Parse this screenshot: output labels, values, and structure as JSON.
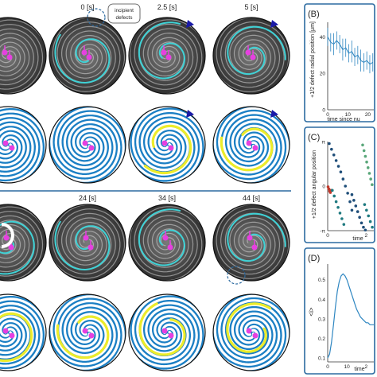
{
  "figure": {
    "time_labels_top": [
      "0 [s]",
      "2.5 [s]",
      "5 [s]"
    ],
    "time_labels_bottom": [
      "24 [s]",
      "34 [s]",
      "44 [s]"
    ],
    "callout": [
      "incipient",
      "defects"
    ],
    "colors": {
      "disk_blue": "#1b7fc4",
      "channel_white": "#ffffff",
      "yellow": "#ecec2a",
      "cyan": "#3fd2d6",
      "magenta": "#e640e0",
      "navy": "#1a1aa8",
      "divider": "#2b6aa0",
      "red": "#c0392b",
      "teal": "#1f7a80",
      "green": "#5aa77a"
    }
  },
  "panel_B": {
    "label": "(B)",
    "ylabel": "+1/2 defect radial position [μm]",
    "xlabel": "time since nu",
    "ytick_labels": [
      "40",
      "20",
      "0"
    ],
    "xtick_labels": [
      "0",
      "10",
      "20"
    ]
  },
  "panel_C": {
    "label": "(C)",
    "ylabel": "+1/2 defect angular position",
    "xlabel": "time",
    "ytick_labels": [
      "π",
      "0",
      "-π"
    ],
    "xtick_labels": [
      "0",
      "2"
    ]
  },
  "panel_D": {
    "label": "(D)",
    "ylabel": "<i>",
    "xlabel": "time",
    "ytick_labels": [
      "0.5",
      "0.4",
      "0.3",
      "0.2",
      "0.1"
    ],
    "xtick_labels": [
      "0",
      "10",
      "2"
    ]
  },
  "chart_data": [
    {
      "type": "line",
      "panel": "B",
      "x": [
        0,
        1.5,
        3,
        4.5,
        6,
        7.5,
        9,
        10.5,
        12,
        13.5,
        15,
        16.5,
        18,
        19.5,
        21,
        22.5
      ],
      "values": [
        40,
        37,
        36,
        38,
        36,
        33,
        34,
        31,
        32,
        29,
        30,
        27,
        26,
        27,
        25,
        26
      ],
      "error": [
        5,
        5,
        6,
        5,
        5,
        6,
        5,
        5,
        6,
        5,
        5,
        6,
        5,
        5,
        5,
        5
      ],
      "xlim": [
        0,
        23
      ],
      "ylim": [
        0,
        48
      ]
    },
    {
      "type": "scatter",
      "panel": "C",
      "xlim": [
        0,
        24
      ],
      "ylim": [
        -3.1416,
        3.1416
      ],
      "series": [
        {
          "color": "#c0392b",
          "x": [
            0.2,
            0.6,
            1.0,
            1.4,
            1.8
          ],
          "values": [
            -0.05,
            -0.2,
            -0.35,
            -0.45,
            -0.3
          ]
        },
        {
          "color": "#1f4e79",
          "x": [
            0.8,
            2,
            3.2,
            4.4,
            5.6,
            6.8,
            8,
            9.2,
            10.4,
            11.6,
            12.6
          ],
          "values": [
            3.0,
            2.6,
            2.2,
            1.8,
            1.4,
            1.0,
            0.5,
            0.0,
            -0.5,
            -1.1,
            -1.7
          ]
        },
        {
          "color": "#1f7a80",
          "x": [
            2.4,
            3.4,
            4.4,
            5.4,
            6.4,
            7.4,
            8.4
          ],
          "values": [
            -0.3,
            -0.7,
            -1.1,
            -1.5,
            -1.9,
            -2.3,
            -2.7
          ]
        },
        {
          "color": "#1f4e79",
          "x": [
            12.6,
            13.6,
            14.6,
            15.6,
            16.6,
            17.6,
            18.6,
            19.6
          ],
          "values": [
            -0.6,
            -1.0,
            -1.4,
            -1.8,
            -2.2,
            -2.6,
            -2.9,
            -3.1
          ]
        },
        {
          "color": "#5aa77a",
          "x": [
            18.2,
            18.9,
            19.6,
            20.3,
            21.0,
            21.7,
            22.4,
            23.1
          ],
          "values": [
            2.9,
            2.5,
            2.1,
            1.7,
            1.3,
            0.9,
            0.5,
            0.1
          ]
        },
        {
          "color": "#1f7a80",
          "x": [
            19.2,
            20.2,
            21.2,
            22.2,
            23.2
          ],
          "values": [
            -1.3,
            -1.7,
            -2.1,
            -2.5,
            -2.9
          ]
        }
      ]
    },
    {
      "type": "line",
      "panel": "D",
      "x": [
        0,
        1,
        2,
        3,
        4,
        5,
        6,
        7,
        8,
        9,
        10,
        11,
        12,
        13,
        14,
        15,
        16,
        17,
        18,
        19,
        20,
        21,
        22,
        23,
        24
      ],
      "values": [
        0.1,
        0.12,
        0.18,
        0.27,
        0.36,
        0.44,
        0.49,
        0.52,
        0.53,
        0.52,
        0.5,
        0.47,
        0.44,
        0.41,
        0.38,
        0.35,
        0.33,
        0.31,
        0.3,
        0.29,
        0.28,
        0.28,
        0.27,
        0.27,
        0.27
      ],
      "xlim": [
        0,
        24
      ],
      "ylim": [
        0.08,
        0.58
      ]
    }
  ]
}
